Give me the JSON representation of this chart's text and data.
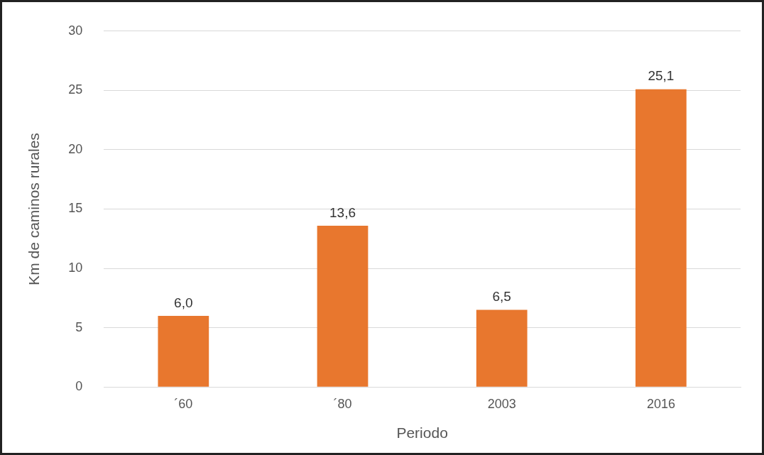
{
  "chart_data": {
    "type": "bar",
    "xlabel": "Periodo",
    "ylabel": "Km de caminos rurales",
    "categories": [
      "´60",
      "´80",
      "2003",
      "2016"
    ],
    "values": [
      6.0,
      13.6,
      6.5,
      25.1
    ],
    "value_labels": [
      "6,0",
      "13,6",
      "6,5",
      "25,1"
    ],
    "color": "#e8772e",
    "ylim": [
      0,
      30
    ],
    "yticks": [
      0,
      5,
      10,
      15,
      20,
      25,
      30
    ],
    "grid": "y",
    "legend": false
  }
}
